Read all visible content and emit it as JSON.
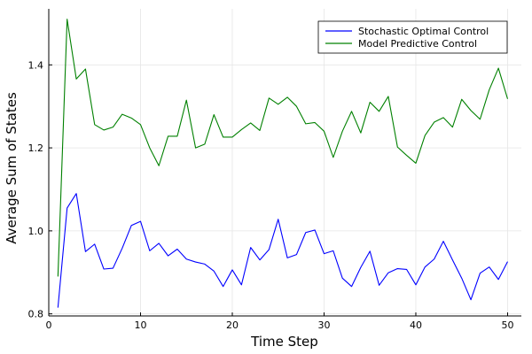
{
  "chart_data": {
    "type": "line",
    "title": "",
    "xlabel": "Time Step",
    "ylabel": "Average Sum of States",
    "xlim": [
      0,
      51.5
    ],
    "ylim": [
      0.795,
      1.535
    ],
    "xticks": [
      0,
      10,
      20,
      30,
      40,
      50
    ],
    "yticks": [
      0.8,
      1.0,
      1.2,
      1.4
    ],
    "ytick_labels": [
      "0.8",
      "1.0",
      "1.2",
      "1.4"
    ],
    "grid": true,
    "legend_position": "top-right",
    "x": [
      1,
      2,
      3,
      4,
      5,
      6,
      7,
      8,
      9,
      10,
      11,
      12,
      13,
      14,
      15,
      16,
      17,
      18,
      19,
      20,
      21,
      22,
      23,
      24,
      25,
      26,
      27,
      28,
      29,
      30,
      31,
      32,
      33,
      34,
      35,
      36,
      37,
      38,
      39,
      40,
      41,
      42,
      43,
      44,
      45,
      46,
      47,
      48,
      49,
      50
    ],
    "series": [
      {
        "name": "Stochastic Optimal Control",
        "color": "#0000ff",
        "values": [
          0.815,
          1.055,
          1.09,
          0.95,
          0.968,
          0.908,
          0.91,
          0.958,
          1.013,
          1.023,
          0.952,
          0.97,
          0.94,
          0.956,
          0.932,
          0.925,
          0.92,
          0.903,
          0.866,
          0.906,
          0.87,
          0.96,
          0.93,
          0.955,
          1.028,
          0.935,
          0.943,
          0.996,
          1.002,
          0.945,
          0.952,
          0.886,
          0.866,
          0.912,
          0.951,
          0.869,
          0.899,
          0.909,
          0.907,
          0.87,
          0.913,
          0.932,
          0.975,
          0.93,
          0.886,
          0.834,
          0.898,
          0.913,
          0.883,
          0.926
        ]
      },
      {
        "name": "Model Predictive Control",
        "color": "#008000",
        "values": [
          0.89,
          1.51,
          1.366,
          1.39,
          1.256,
          1.243,
          1.25,
          1.281,
          1.272,
          1.256,
          1.2,
          1.157,
          1.228,
          1.228,
          1.315,
          1.2,
          1.209,
          1.28,
          1.226,
          1.226,
          1.244,
          1.26,
          1.242,
          1.32,
          1.305,
          1.322,
          1.3,
          1.258,
          1.261,
          1.24,
          1.177,
          1.24,
          1.288,
          1.236,
          1.31,
          1.288,
          1.324,
          1.202,
          1.182,
          1.163,
          1.23,
          1.262,
          1.273,
          1.25,
          1.317,
          1.29,
          1.269,
          1.34,
          1.392,
          1.318
        ]
      }
    ]
  }
}
